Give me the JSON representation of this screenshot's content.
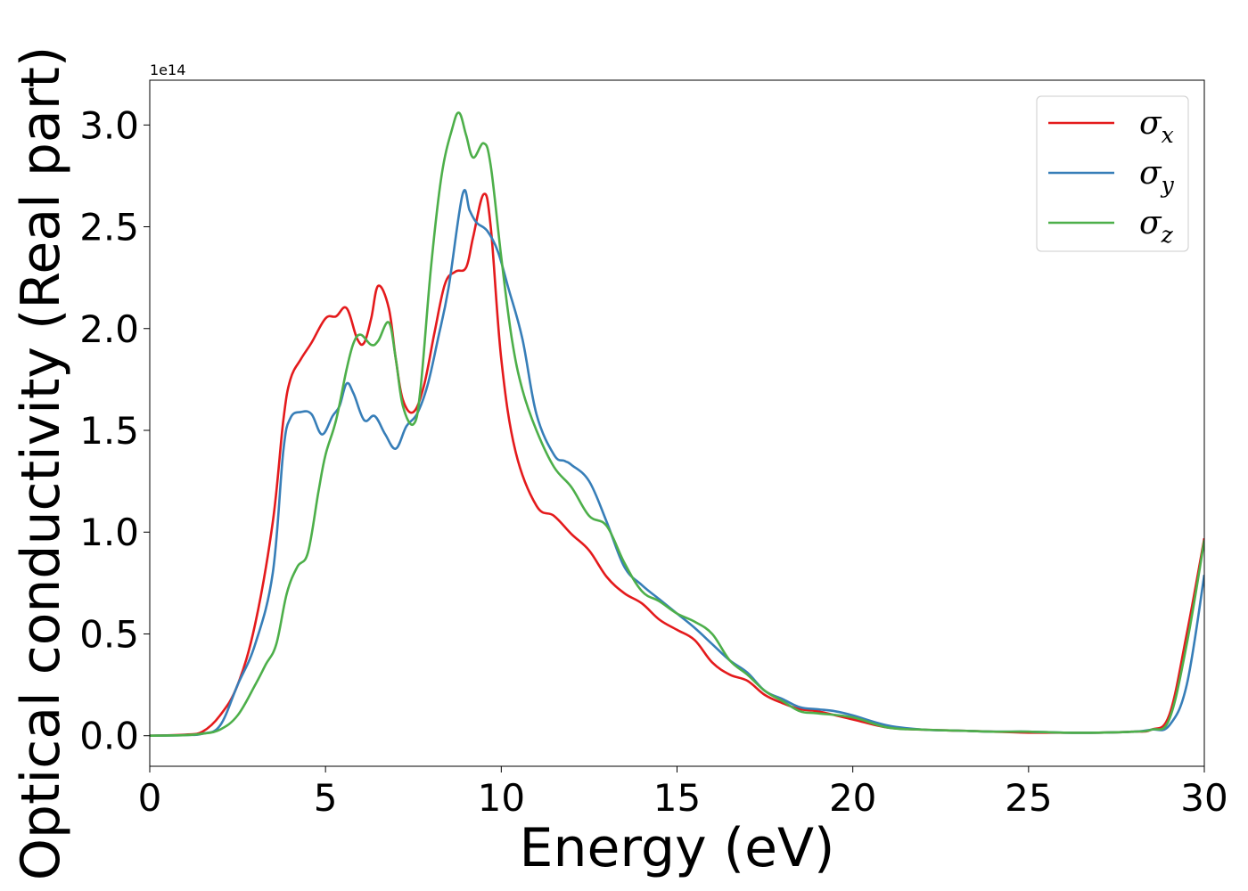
{
  "chart_data": {
    "type": "line",
    "title": "",
    "xlabel": "Energy (eV)",
    "ylabel": "Optical conductivity (Real part)",
    "y_offset_text": "1e14",
    "xlim": [
      0,
      30
    ],
    "ylim": [
      -0.15,
      3.22
    ],
    "xticks": [
      0,
      5,
      10,
      15,
      20,
      25,
      30
    ],
    "xtick_labels": [
      "0",
      "5",
      "10",
      "15",
      "20",
      "25",
      "30"
    ],
    "yticks": [
      0.0,
      0.5,
      1.0,
      1.5,
      2.0,
      2.5,
      3.0
    ],
    "ytick_labels": [
      "0.0",
      "0.5",
      "1.0",
      "1.5",
      "2.0",
      "2.5",
      "3.0"
    ],
    "grid": false,
    "legend_position": "top-right",
    "series": [
      {
        "name": "σx",
        "legend_base": "σ",
        "legend_sub": "x",
        "color": "#e41a1c",
        "x": [
          0,
          1,
          1.5,
          2,
          2.5,
          3,
          3.5,
          3.8,
          4,
          4.3,
          4.6,
          5,
          5.3,
          5.6,
          5.9,
          6.1,
          6.3,
          6.5,
          6.8,
          7.0,
          7.2,
          7.5,
          7.8,
          8.1,
          8.4,
          8.7,
          9.0,
          9.2,
          9.5,
          9.7,
          10.0,
          10.4,
          11,
          11.5,
          12,
          12.5,
          13,
          13.5,
          14,
          14.5,
          15,
          15.5,
          16,
          16.5,
          17,
          17.5,
          18,
          18.5,
          19,
          20,
          21,
          22,
          23,
          24,
          25,
          26,
          27,
          28,
          28.5,
          29,
          29.5,
          30
        ],
        "y": [
          0,
          0.005,
          0.02,
          0.1,
          0.25,
          0.55,
          1.05,
          1.55,
          1.75,
          1.85,
          1.93,
          2.05,
          2.06,
          2.1,
          1.95,
          1.93,
          2.05,
          2.21,
          2.1,
          1.85,
          1.65,
          1.59,
          1.72,
          1.98,
          2.22,
          2.28,
          2.3,
          2.45,
          2.66,
          2.5,
          1.85,
          1.4,
          1.13,
          1.08,
          0.99,
          0.91,
          0.78,
          0.7,
          0.65,
          0.57,
          0.52,
          0.47,
          0.36,
          0.3,
          0.27,
          0.2,
          0.16,
          0.13,
          0.12,
          0.08,
          0.04,
          0.03,
          0.025,
          0.02,
          0.015,
          0.015,
          0.015,
          0.02,
          0.03,
          0.1,
          0.5,
          0.97
        ]
      },
      {
        "name": "σy",
        "legend_base": "σ",
        "legend_sub": "y",
        "color": "#377eb8",
        "x": [
          0,
          1,
          1.5,
          2,
          2.5,
          3,
          3.5,
          3.8,
          4,
          4.3,
          4.6,
          4.9,
          5.2,
          5.4,
          5.6,
          5.8,
          6.1,
          6.4,
          6.7,
          7.0,
          7.3,
          7.6,
          7.9,
          8.2,
          8.5,
          8.9,
          9.1,
          9.3,
          9.6,
          9.9,
          10.2,
          10.6,
          11,
          11.5,
          11.8,
          12,
          12.5,
          13,
          13.5,
          14,
          14.5,
          15,
          15.5,
          16,
          16.5,
          17,
          17.5,
          18,
          18.5,
          19,
          19.5,
          20,
          21,
          22,
          23,
          24,
          25,
          26,
          27,
          28,
          28.5,
          29,
          29.5,
          30
        ],
        "y": [
          0,
          0.003,
          0.01,
          0.05,
          0.25,
          0.45,
          0.8,
          1.4,
          1.56,
          1.59,
          1.58,
          1.48,
          1.57,
          1.62,
          1.73,
          1.68,
          1.55,
          1.57,
          1.48,
          1.41,
          1.52,
          1.58,
          1.72,
          1.95,
          2.2,
          2.66,
          2.58,
          2.52,
          2.48,
          2.38,
          2.2,
          1.95,
          1.58,
          1.38,
          1.35,
          1.33,
          1.25,
          1.05,
          0.83,
          0.74,
          0.67,
          0.6,
          0.53,
          0.45,
          0.37,
          0.31,
          0.22,
          0.18,
          0.14,
          0.13,
          0.12,
          0.1,
          0.05,
          0.03,
          0.025,
          0.02,
          0.02,
          0.015,
          0.015,
          0.02,
          0.03,
          0.05,
          0.25,
          0.79
        ]
      },
      {
        "name": "σz",
        "legend_base": "σ",
        "legend_sub": "z",
        "color": "#4daf4a",
        "x": [
          0,
          1,
          1.5,
          2,
          2.5,
          3,
          3.3,
          3.6,
          3.9,
          4.2,
          4.5,
          4.8,
          5.0,
          5.3,
          5.6,
          5.8,
          6.0,
          6.3,
          6.5,
          6.8,
          7.0,
          7.2,
          7.5,
          7.7,
          8.0,
          8.3,
          8.6,
          8.8,
          9.0,
          9.2,
          9.5,
          9.7,
          10.0,
          10.3,
          10.6,
          11,
          11.5,
          12,
          12.5,
          13,
          13.5,
          14,
          14.5,
          15,
          15.5,
          16,
          16.5,
          17,
          17.5,
          18,
          18.5,
          19,
          20,
          21,
          22,
          23,
          24,
          25,
          26,
          27,
          28,
          28.5,
          29,
          29.5,
          30
        ],
        "y": [
          0,
          0.003,
          0.01,
          0.03,
          0.1,
          0.25,
          0.35,
          0.45,
          0.7,
          0.83,
          0.9,
          1.2,
          1.38,
          1.55,
          1.8,
          1.93,
          1.97,
          1.92,
          1.94,
          2.03,
          1.85,
          1.62,
          1.53,
          1.7,
          2.3,
          2.75,
          2.98,
          3.06,
          2.95,
          2.84,
          2.91,
          2.8,
          2.35,
          1.95,
          1.7,
          1.5,
          1.32,
          1.22,
          1.08,
          1.03,
          0.85,
          0.71,
          0.66,
          0.6,
          0.56,
          0.5,
          0.37,
          0.3,
          0.22,
          0.17,
          0.12,
          0.11,
          0.09,
          0.04,
          0.03,
          0.025,
          0.02,
          0.02,
          0.015,
          0.015,
          0.02,
          0.03,
          0.08,
          0.45,
          0.96
        ]
      }
    ]
  }
}
